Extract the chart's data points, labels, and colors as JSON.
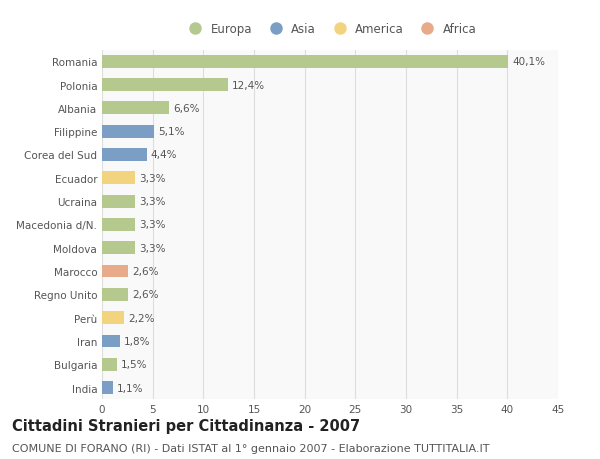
{
  "countries": [
    "Romania",
    "Polonia",
    "Albania",
    "Filippine",
    "Corea del Sud",
    "Ecuador",
    "Ucraina",
    "Macedonia d/N.",
    "Moldova",
    "Marocco",
    "Regno Unito",
    "Perù",
    "Iran",
    "Bulgaria",
    "India"
  ],
  "values": [
    40.1,
    12.4,
    6.6,
    5.1,
    4.4,
    3.3,
    3.3,
    3.3,
    3.3,
    2.6,
    2.6,
    2.2,
    1.8,
    1.5,
    1.1
  ],
  "labels": [
    "40,1%",
    "12,4%",
    "6,6%",
    "5,1%",
    "4,4%",
    "3,3%",
    "3,3%",
    "3,3%",
    "3,3%",
    "2,6%",
    "2,6%",
    "2,2%",
    "1,8%",
    "1,5%",
    "1,1%"
  ],
  "continents": [
    "Europa",
    "Europa",
    "Europa",
    "Asia",
    "Asia",
    "America",
    "Europa",
    "Europa",
    "Europa",
    "Africa",
    "Europa",
    "America",
    "Asia",
    "Europa",
    "Asia"
  ],
  "continent_colors": {
    "Europa": "#b5c98e",
    "Asia": "#7b9fc4",
    "America": "#f2d47e",
    "Africa": "#e8aa88"
  },
  "legend_order": [
    "Europa",
    "Asia",
    "America",
    "Africa"
  ],
  "xlim": [
    0,
    45
  ],
  "xticks": [
    0,
    5,
    10,
    15,
    20,
    25,
    30,
    35,
    40,
    45
  ],
  "title": "Cittadini Stranieri per Cittadinanza - 2007",
  "subtitle": "COMUNE DI FORANO (RI) - Dati ISTAT al 1° gennaio 2007 - Elaborazione TUTTITALIA.IT",
  "background_color": "#ffffff",
  "plot_area_color": "#f9f9f9",
  "grid_color": "#dddddd",
  "bar_height": 0.55,
  "title_fontsize": 10.5,
  "subtitle_fontsize": 8,
  "label_fontsize": 7.5,
  "tick_fontsize": 7.5,
  "legend_fontsize": 8.5
}
